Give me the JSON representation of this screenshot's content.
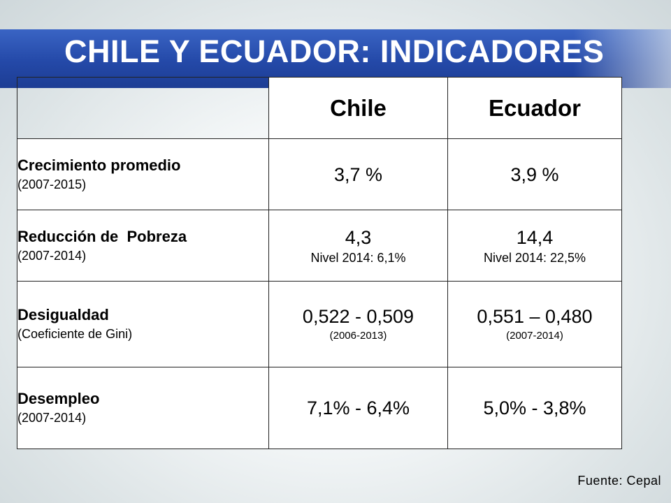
{
  "title": "CHILE Y ECUADOR: INDICADORES",
  "columns": [
    "Chile",
    "Ecuador"
  ],
  "rows": [
    {
      "label": "Crecimiento promedio",
      "sublabel": "(2007-2015)",
      "chile": {
        "main": "3,7 %",
        "note": ""
      },
      "ecuador": {
        "main": "3,9 %",
        "note": ""
      }
    },
    {
      "label": "Reducción de  Pobreza",
      "sublabel": "(2007-2014)",
      "chile": {
        "main": "4,3",
        "note": "Nivel 2014: 6,1%"
      },
      "ecuador": {
        "main": "14,4",
        "note": "Nivel 2014: 22,5%"
      }
    },
    {
      "label": "Desigualdad",
      "sublabel": "(Coeficiente de Gini)",
      "chile": {
        "main": "0,522 - 0,509",
        "note": "(2006-2013)"
      },
      "ecuador": {
        "main": "0,551 – 0,480",
        "note": "(2007-2014)"
      }
    },
    {
      "label": "Desempleo",
      "sublabel": "(2007-2014)",
      "chile": {
        "main": "7,1% - 6,4%",
        "note": ""
      },
      "ecuador": {
        "main": "5,0% - 3,8%",
        "note": ""
      }
    }
  ],
  "source": "Fuente: Cepal"
}
